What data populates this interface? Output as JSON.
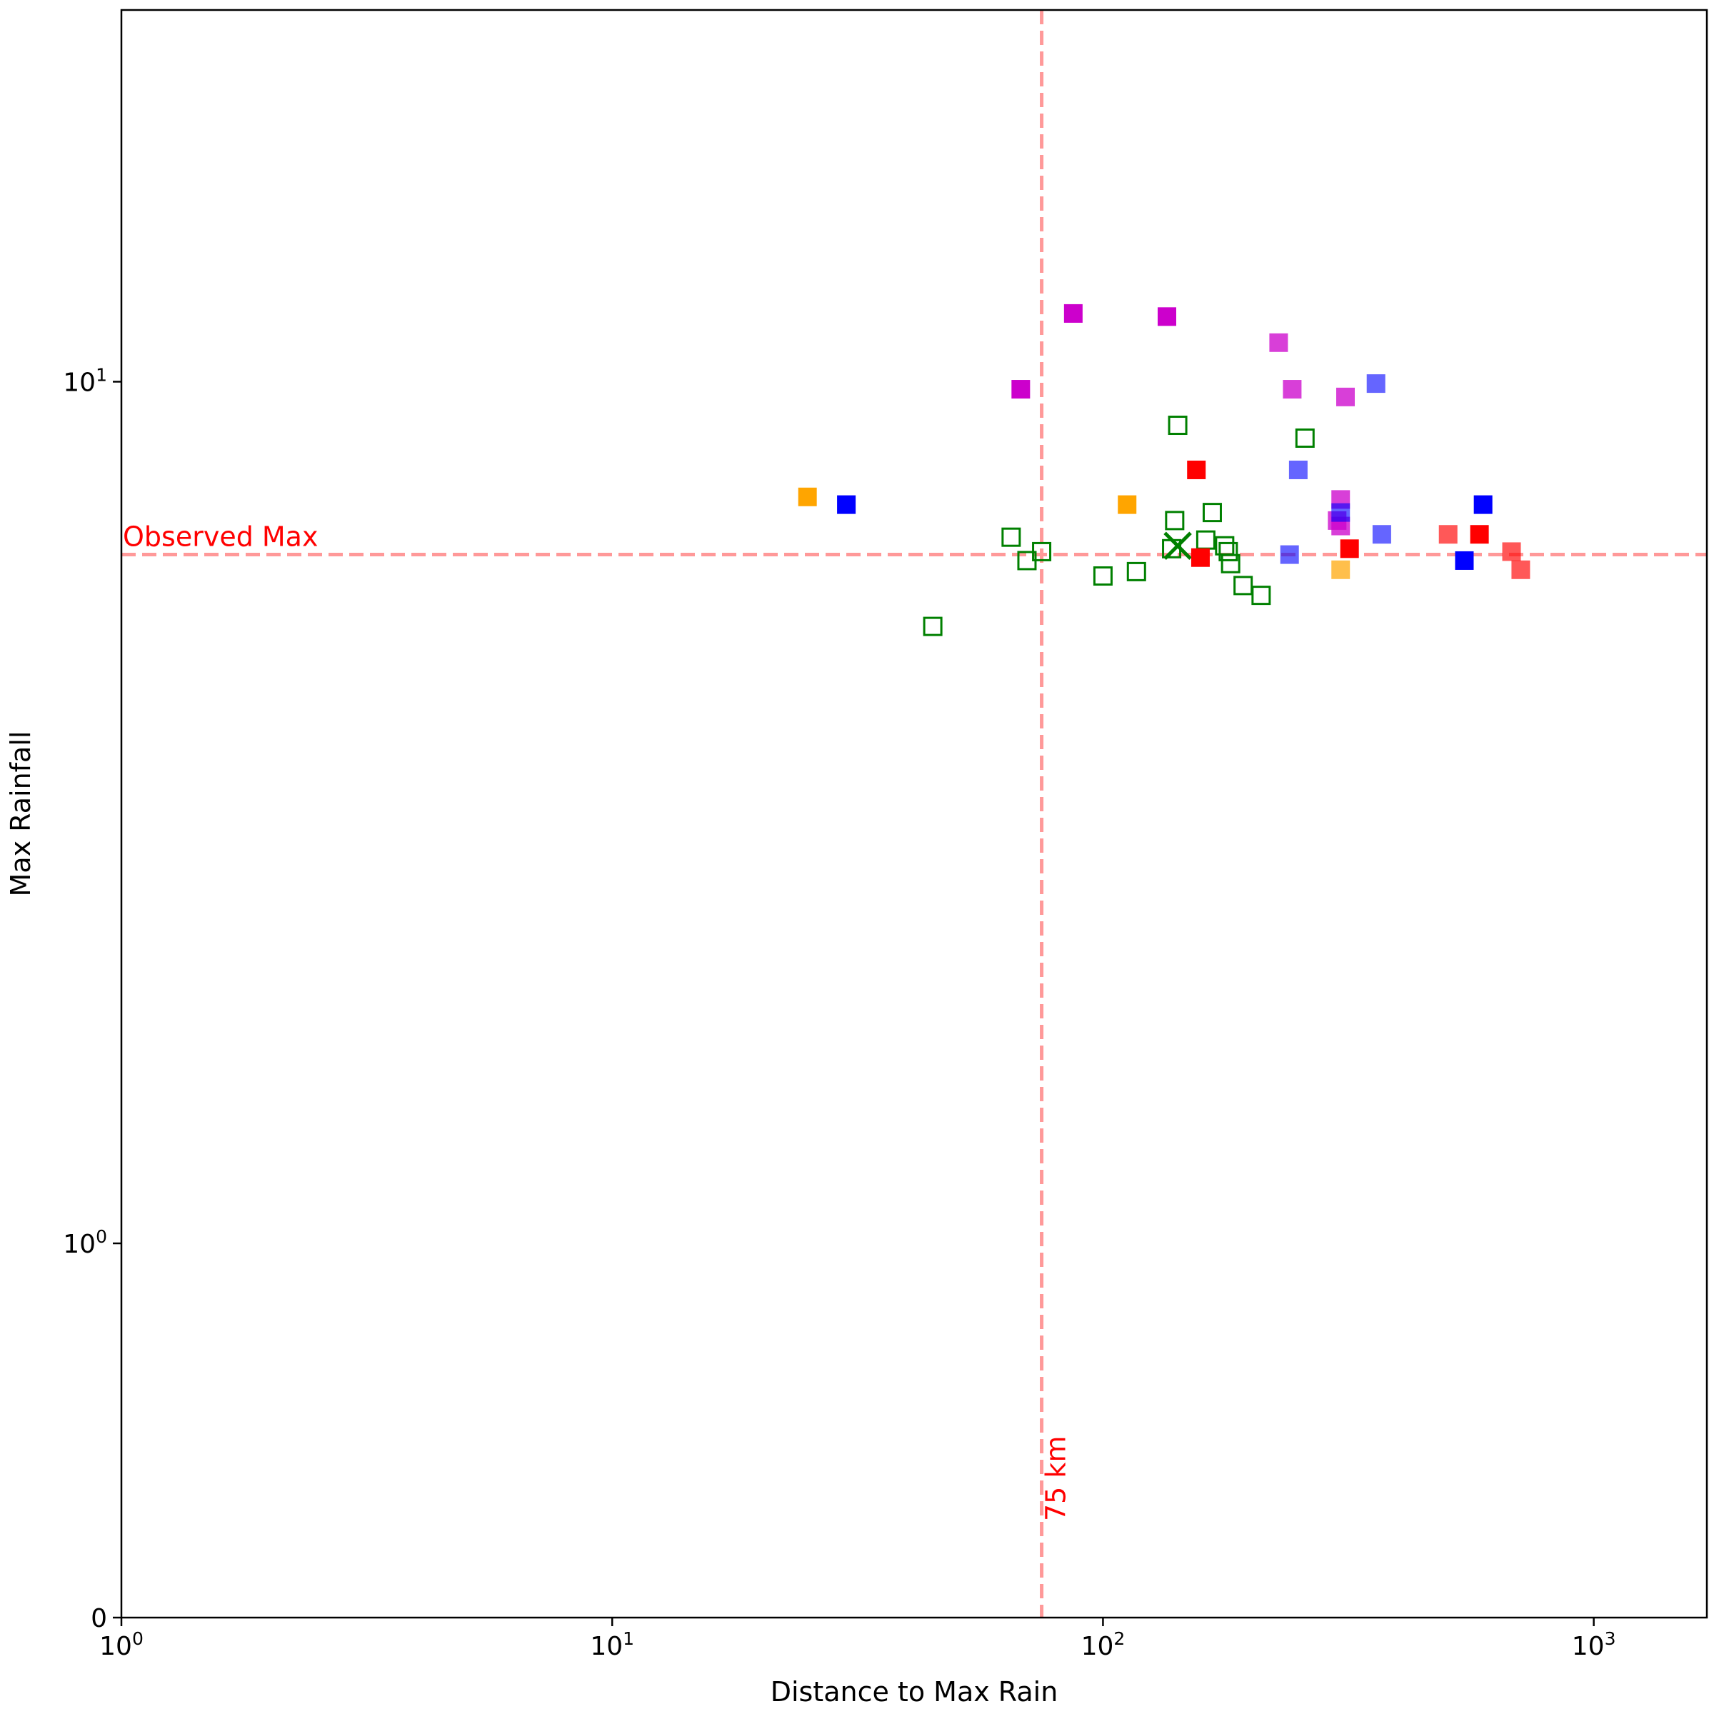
{
  "chart_data": {
    "type": "scatter",
    "title": "",
    "xlabel": "Distance to Max Rain",
    "ylabel": "Max Rainfall",
    "xscale": "log",
    "yscale": "symlog",
    "xlim": [
      1,
      1700
    ],
    "ylim": [
      0,
      27
    ],
    "grid": false,
    "x_ticks": [
      {
        "value": 1,
        "base": "10",
        "exp": "0"
      },
      {
        "value": 10,
        "base": "10",
        "exp": "1"
      },
      {
        "value": 100,
        "base": "10",
        "exp": "2"
      },
      {
        "value": 1000,
        "base": "10",
        "exp": "3"
      }
    ],
    "y_ticks": [
      {
        "value": 0,
        "text": "0"
      },
      {
        "value": 1,
        "base": "10",
        "exp": "0"
      },
      {
        "value": 10,
        "base": "10",
        "exp": "1"
      }
    ],
    "reference_lines": {
      "horizontal": {
        "y": 6.3,
        "label": "Observed Max",
        "color": "#ff9999"
      },
      "vertical": {
        "x": 75,
        "label": "75 km",
        "color": "#ff9999"
      }
    },
    "series": [
      {
        "color": "#008000",
        "marker": "square-open",
        "alpha": 1.0,
        "points": [
          [
            45,
            5.2
          ],
          [
            65,
            6.6
          ],
          [
            70,
            6.2
          ],
          [
            75,
            6.35
          ],
          [
            100,
            5.95
          ],
          [
            117,
            6.02
          ],
          [
            138,
            6.4
          ],
          [
            140,
            6.9
          ],
          [
            142,
            8.9
          ],
          [
            162,
            6.55
          ],
          [
            167,
            7.05
          ],
          [
            177,
            6.45
          ],
          [
            180,
            6.35
          ],
          [
            182,
            6.15
          ],
          [
            193,
            5.8
          ],
          [
            210,
            5.65
          ],
          [
            258,
            8.6
          ]
        ]
      },
      {
        "color": "#008000",
        "marker": "x",
        "alpha": 1.0,
        "points": [
          [
            142,
            6.45
          ]
        ]
      },
      {
        "color": "#cc00cc",
        "marker": "square",
        "alpha": 1.0,
        "points": [
          [
            68,
            9.8
          ],
          [
            87,
            12.0
          ],
          [
            135,
            11.9
          ]
        ]
      },
      {
        "color": "#cc00cc",
        "marker": "square",
        "alpha": 0.75,
        "points": [
          [
            228,
            11.1
          ],
          [
            243,
            9.8
          ],
          [
            305,
            7.3
          ],
          [
            312,
            9.6
          ],
          [
            300,
            6.9
          ],
          [
            305,
            6.8
          ]
        ]
      },
      {
        "color": "#0000ff",
        "marker": "square",
        "alpha": 1.0,
        "points": [
          [
            30,
            7.2
          ],
          [
            595,
            7.2
          ],
          [
            545,
            6.2
          ]
        ]
      },
      {
        "color": "#0000ff",
        "marker": "square",
        "alpha": 0.6,
        "points": [
          [
            250,
            7.9
          ],
          [
            240,
            6.3
          ],
          [
            305,
            7.05
          ],
          [
            360,
            9.95
          ],
          [
            370,
            6.65
          ]
        ]
      },
      {
        "color": "#ff0000",
        "marker": "square",
        "alpha": 1.0,
        "points": [
          [
            155,
            7.9
          ],
          [
            158,
            6.25
          ],
          [
            318,
            6.4
          ],
          [
            585,
            6.65
          ]
        ]
      },
      {
        "color": "#ff0000",
        "marker": "square",
        "alpha": 0.65,
        "points": [
          [
            505,
            6.65
          ],
          [
            680,
            6.35
          ],
          [
            710,
            6.05
          ]
        ]
      },
      {
        "color": "#ffa500",
        "marker": "square",
        "alpha": 1.0,
        "points": [
          [
            25,
            7.35
          ],
          [
            112,
            7.2
          ]
        ]
      },
      {
        "color": "#ffa500",
        "marker": "square",
        "alpha": 0.7,
        "points": [
          [
            305,
            6.05
          ]
        ]
      }
    ]
  }
}
